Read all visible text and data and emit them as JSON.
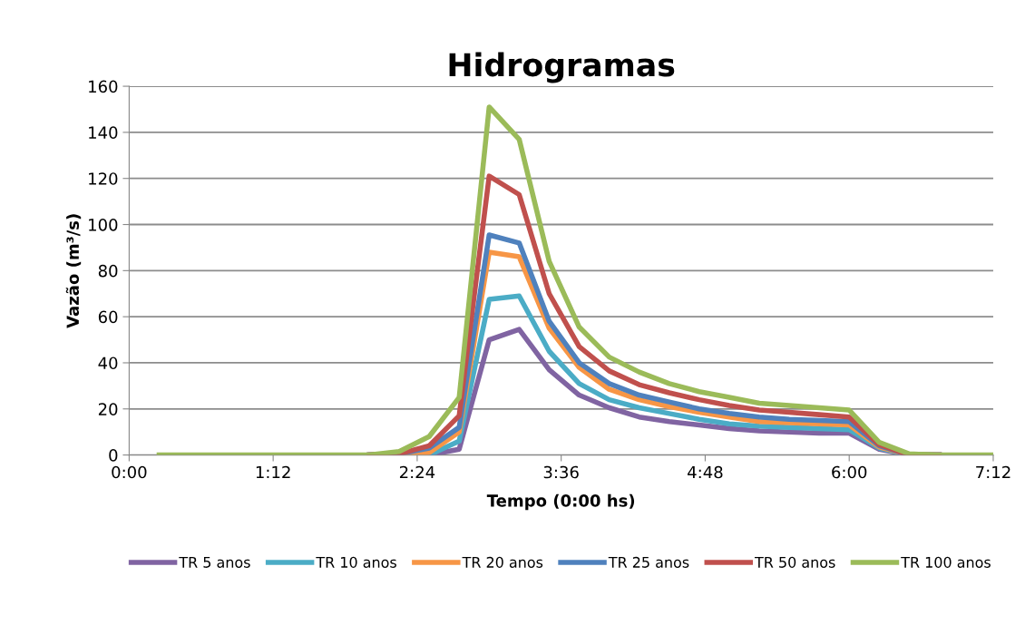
{
  "chart_data": {
    "type": "line",
    "title": "Hidrogramas",
    "xlabel": "Tempo (0:00 hs)",
    "ylabel": "Vazão (m³/s)",
    "x": [
      0.25,
      0.5,
      0.75,
      1.0,
      1.25,
      1.5,
      1.75,
      2.0,
      2.25,
      2.5,
      2.75,
      3.0,
      3.25,
      3.5,
      3.75,
      4.0,
      4.25,
      4.5,
      4.75,
      5.0,
      5.25,
      5.5,
      5.75,
      6.0,
      6.25,
      6.5,
      6.75,
      7.0,
      7.2
    ],
    "series": [
      {
        "name": "TR 5 anos",
        "color": "#8064a2",
        "values": [
          null,
          null,
          null,
          null,
          null,
          null,
          null,
          0,
          0,
          0,
          2.5,
          50,
          54.5,
          37,
          26,
          20.5,
          16.5,
          14.5,
          13,
          11.5,
          10.5,
          10,
          9.5,
          9.5,
          2.5,
          0,
          0,
          null,
          null
        ]
      },
      {
        "name": "TR 10 anos",
        "color": "#4bacc6",
        "values": [
          null,
          null,
          null,
          null,
          null,
          null,
          null,
          0,
          0,
          0,
          6,
          67.5,
          69,
          45,
          31,
          24,
          20.5,
          18,
          15.5,
          13.5,
          12.5,
          12,
          11.5,
          11,
          3,
          0,
          0,
          null,
          null
        ]
      },
      {
        "name": "TR 20 anos",
        "color": "#f79646",
        "values": [
          null,
          null,
          null,
          null,
          null,
          null,
          null,
          0,
          0,
          1,
          10,
          88,
          86,
          55,
          38,
          28.5,
          24,
          21,
          18.5,
          16.5,
          14.5,
          14,
          13.5,
          13,
          3.5,
          0,
          0,
          null,
          null
        ]
      },
      {
        "name": "TR 25 anos",
        "color": "#4f81bd",
        "values": [
          null,
          null,
          null,
          null,
          null,
          null,
          null,
          0,
          0.5,
          3,
          12,
          95.5,
          92,
          58,
          40,
          31,
          26,
          23,
          20,
          18,
          16.5,
          15.5,
          15,
          14.5,
          4,
          0,
          0,
          null,
          null
        ]
      },
      {
        "name": "TR 50 anos",
        "color": "#c0504d",
        "values": [
          null,
          null,
          null,
          null,
          null,
          null,
          null,
          0,
          0.5,
          4,
          17,
          121,
          113,
          70,
          47,
          36.5,
          30.5,
          27,
          24,
          21.5,
          19.5,
          18.5,
          17.5,
          16.5,
          4.5,
          0,
          0,
          null,
          null
        ]
      },
      {
        "name": "TR 100 anos",
        "color": "#9bbb59",
        "values": [
          0,
          0,
          0,
          0,
          0,
          0,
          0,
          0,
          1.5,
          8,
          25,
          151,
          137,
          84,
          55.5,
          42.5,
          36,
          31,
          27.5,
          25,
          22.5,
          21.5,
          20.5,
          19.5,
          5.5,
          0.5,
          0,
          0,
          0
        ]
      }
    ],
    "xlim": [
      0,
      7.2
    ],
    "xticks": [
      {
        "value": 0,
        "label": "0:00"
      },
      {
        "value": 1.2,
        "label": "1:12"
      },
      {
        "value": 2.4,
        "label": "2:24"
      },
      {
        "value": 3.6,
        "label": "3:36"
      },
      {
        "value": 4.8,
        "label": "4:48"
      },
      {
        "value": 6.0,
        "label": "6:00"
      },
      {
        "value": 7.2,
        "label": "7:12"
      }
    ],
    "ylim": [
      0,
      160
    ],
    "yticks": [
      0,
      20,
      40,
      60,
      80,
      100,
      120,
      140,
      160
    ],
    "grid": "y",
    "legend": "bottom",
    "marker": "none",
    "line_style": "solid"
  }
}
